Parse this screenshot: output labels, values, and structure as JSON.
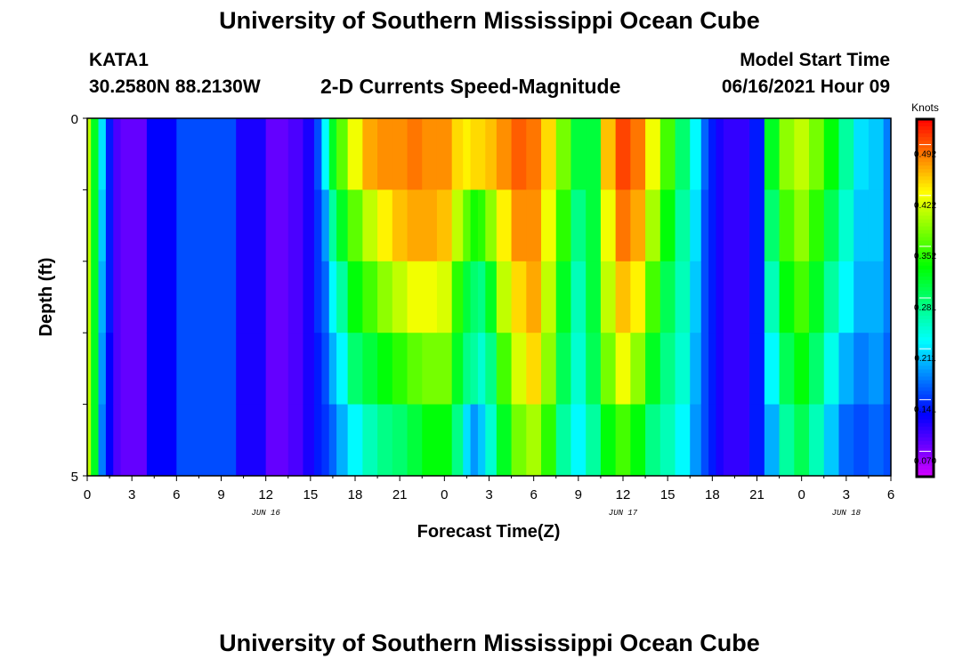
{
  "header": {
    "title_top": "University of Southern Mississippi Ocean Cube",
    "station": "KATA1",
    "coords": "30.2580N  88.2130W",
    "subtitle": "2-D Currents Speed-Magnitude",
    "start_label": "Model Start Time",
    "start_value": "06/16/2021 Hour 09",
    "title_bottom": "University of Southern Mississippi Ocean Cube"
  },
  "chart_data": {
    "type": "heatmap",
    "xlabel": "Forecast Time(Z)",
    "ylabel": "Depth (ft)",
    "ylim": [
      0,
      5
    ],
    "y_ticks": [
      "0",
      "5"
    ],
    "x_tick_labels": [
      "0",
      "3",
      "6",
      "9",
      "12",
      "15",
      "18",
      "21",
      "0",
      "3",
      "6",
      "9",
      "12",
      "15",
      "18",
      "21",
      "0",
      "3",
      "6"
    ],
    "date_labels": [
      "JUN 16",
      "JUN 17",
      "JUN 18"
    ],
    "colorbar": {
      "title": "Knots",
      "ticks": [
        "0.492",
        "0.422",
        "0.352",
        "0.281",
        "0.211",
        "0.141",
        "0.070"
      ],
      "min": 0.035,
      "max": 0.527
    },
    "depth_layers": 5,
    "time_start_hour": 0,
    "time_end_hour": 54,
    "profile_times": [
      0,
      0.5,
      1,
      1.5,
      2,
      2.5,
      3,
      5,
      7,
      9,
      11,
      13,
      14,
      15,
      15.5,
      16,
      16.5,
      17,
      18,
      19,
      20,
      21,
      22,
      23,
      24,
      25,
      25.5,
      26,
      26.5,
      27,
      28,
      29,
      30,
      31,
      32,
      33,
      34,
      35,
      36,
      37,
      38,
      39,
      40,
      41,
      41.5,
      42,
      42.5,
      43,
      44,
      45,
      46,
      47,
      48,
      49,
      50,
      51,
      52,
      53,
      54
    ],
    "profiles": [
      [
        0.4,
        0.4,
        0.4,
        0.4,
        0.4
      ],
      [
        0.31,
        0.31,
        0.31,
        0.31,
        0.31
      ],
      [
        0.21,
        0.2,
        0.19,
        0.18,
        0.17
      ],
      [
        0.13,
        0.13,
        0.13,
        0.12,
        0.12
      ],
      [
        0.09,
        0.09,
        0.09,
        0.09,
        0.09
      ],
      [
        0.08,
        0.08,
        0.08,
        0.08,
        0.08
      ],
      [
        0.08,
        0.08,
        0.08,
        0.08,
        0.08
      ],
      [
        0.12,
        0.12,
        0.12,
        0.12,
        0.12
      ],
      [
        0.15,
        0.15,
        0.15,
        0.15,
        0.15
      ],
      [
        0.15,
        0.15,
        0.15,
        0.15,
        0.15
      ],
      [
        0.11,
        0.11,
        0.11,
        0.11,
        0.11
      ],
      [
        0.08,
        0.08,
        0.08,
        0.08,
        0.08
      ],
      [
        0.09,
        0.09,
        0.09,
        0.09,
        0.09
      ],
      [
        0.11,
        0.11,
        0.11,
        0.11,
        0.11
      ],
      [
        0.15,
        0.14,
        0.14,
        0.13,
        0.13
      ],
      [
        0.22,
        0.18,
        0.16,
        0.15,
        0.14
      ],
      [
        0.31,
        0.26,
        0.22,
        0.19,
        0.16
      ],
      [
        0.36,
        0.31,
        0.26,
        0.22,
        0.19
      ],
      [
        0.42,
        0.36,
        0.32,
        0.28,
        0.22
      ],
      [
        0.46,
        0.4,
        0.35,
        0.3,
        0.25
      ],
      [
        0.47,
        0.43,
        0.38,
        0.32,
        0.27
      ],
      [
        0.47,
        0.45,
        0.4,
        0.34,
        0.28
      ],
      [
        0.48,
        0.46,
        0.42,
        0.36,
        0.3
      ],
      [
        0.47,
        0.46,
        0.42,
        0.37,
        0.32
      ],
      [
        0.47,
        0.45,
        0.41,
        0.37,
        0.32
      ],
      [
        0.44,
        0.4,
        0.34,
        0.31,
        0.27
      ],
      [
        0.43,
        0.36,
        0.3,
        0.27,
        0.21
      ],
      [
        0.44,
        0.33,
        0.28,
        0.26,
        0.18
      ],
      [
        0.44,
        0.34,
        0.27,
        0.24,
        0.2
      ],
      [
        0.45,
        0.38,
        0.31,
        0.27,
        0.24
      ],
      [
        0.47,
        0.43,
        0.4,
        0.35,
        0.31
      ],
      [
        0.49,
        0.47,
        0.44,
        0.41,
        0.37
      ],
      [
        0.48,
        0.47,
        0.46,
        0.44,
        0.39
      ],
      [
        0.44,
        0.42,
        0.4,
        0.38,
        0.34
      ],
      [
        0.37,
        0.34,
        0.31,
        0.29,
        0.26
      ],
      [
        0.3,
        0.27,
        0.25,
        0.24,
        0.22
      ],
      [
        0.3,
        0.3,
        0.3,
        0.29,
        0.26
      ],
      [
        0.45,
        0.42,
        0.4,
        0.37,
        0.32
      ],
      [
        0.5,
        0.48,
        0.45,
        0.42,
        0.35
      ],
      [
        0.48,
        0.46,
        0.43,
        0.38,
        0.32
      ],
      [
        0.42,
        0.39,
        0.35,
        0.31,
        0.27
      ],
      [
        0.35,
        0.32,
        0.29,
        0.27,
        0.25
      ],
      [
        0.28,
        0.26,
        0.25,
        0.24,
        0.22
      ],
      [
        0.22,
        0.21,
        0.2,
        0.19,
        0.18
      ],
      [
        0.16,
        0.15,
        0.15,
        0.15,
        0.15
      ],
      [
        0.13,
        0.13,
        0.13,
        0.13,
        0.13
      ],
      [
        0.11,
        0.11,
        0.11,
        0.11,
        0.11
      ],
      [
        0.1,
        0.1,
        0.1,
        0.1,
        0.1
      ],
      [
        0.1,
        0.1,
        0.1,
        0.1,
        0.1
      ],
      [
        0.13,
        0.13,
        0.13,
        0.13,
        0.13
      ],
      [
        0.31,
        0.28,
        0.25,
        0.22,
        0.19
      ],
      [
        0.38,
        0.35,
        0.32,
        0.29,
        0.26
      ],
      [
        0.4,
        0.38,
        0.35,
        0.32,
        0.29
      ],
      [
        0.37,
        0.34,
        0.31,
        0.28,
        0.25
      ],
      [
        0.32,
        0.29,
        0.26,
        0.23,
        0.2
      ],
      [
        0.26,
        0.24,
        0.22,
        0.19,
        0.16
      ],
      [
        0.21,
        0.2,
        0.19,
        0.17,
        0.15
      ],
      [
        0.2,
        0.2,
        0.19,
        0.18,
        0.16
      ],
      [
        0.17,
        0.17,
        0.17,
        0.16,
        0.15
      ]
    ]
  }
}
